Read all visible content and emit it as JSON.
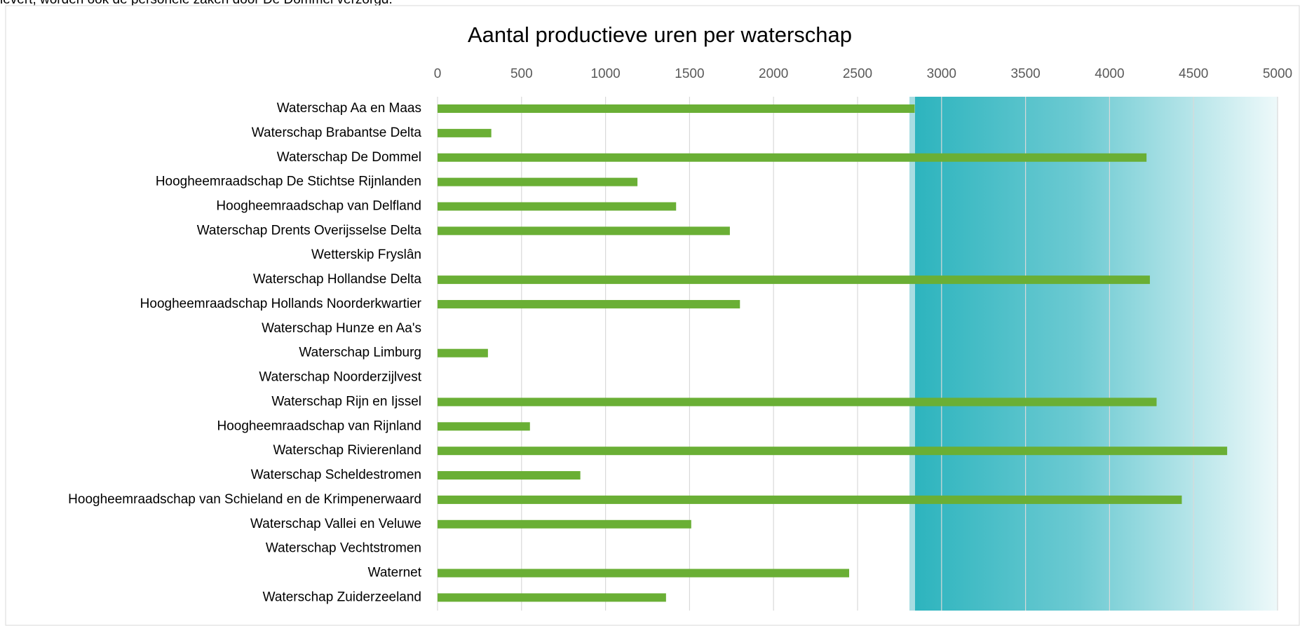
{
  "page_text": "levert, worden ook de personele zaken door De Dommel verzorgd.",
  "chart_data": {
    "type": "bar",
    "orientation": "horizontal",
    "title": "Aantal productieve uren per waterschap",
    "categories": [
      "Waterschap Aa en Maas",
      "Waterschap Brabantse Delta",
      "Waterschap De Dommel",
      "Hoogheemraadschap De Stichtse Rijnlanden",
      "Hoogheemraadschap van Delfland",
      "Waterschap Drents Overijsselse Delta",
      "Wetterskip Fryslân",
      "Waterschap Hollandse Delta",
      "Hoogheemraadschap Hollands Noorderkwartier",
      "Waterschap Hunze en Aa's",
      "Waterschap Limburg",
      "Waterschap Noorderzijlvest",
      "Waterschap Rijn en Ijssel",
      "Hoogheemraadschap van Rijnland",
      "Waterschap Rivierenland",
      "Waterschap Scheldestromen",
      "Hoogheemraadschap van Schieland en de Krimpenerwaard",
      "Waterschap Vallei en Veluwe",
      "Waterschap Vechtstromen",
      "Waternet",
      "Waterschap Zuiderzeeland"
    ],
    "values": [
      2840,
      320,
      4220,
      1190,
      1420,
      1740,
      null,
      4240,
      1800,
      null,
      300,
      null,
      4280,
      550,
      4700,
      850,
      4430,
      1510,
      null,
      2450,
      1360
    ],
    "color": "#6aaf35",
    "xlim": [
      0,
      5000
    ],
    "xticks": [
      0,
      500,
      1000,
      1500,
      2000,
      2500,
      3000,
      3500,
      4000,
      4500,
      5000
    ],
    "grid": true
  }
}
